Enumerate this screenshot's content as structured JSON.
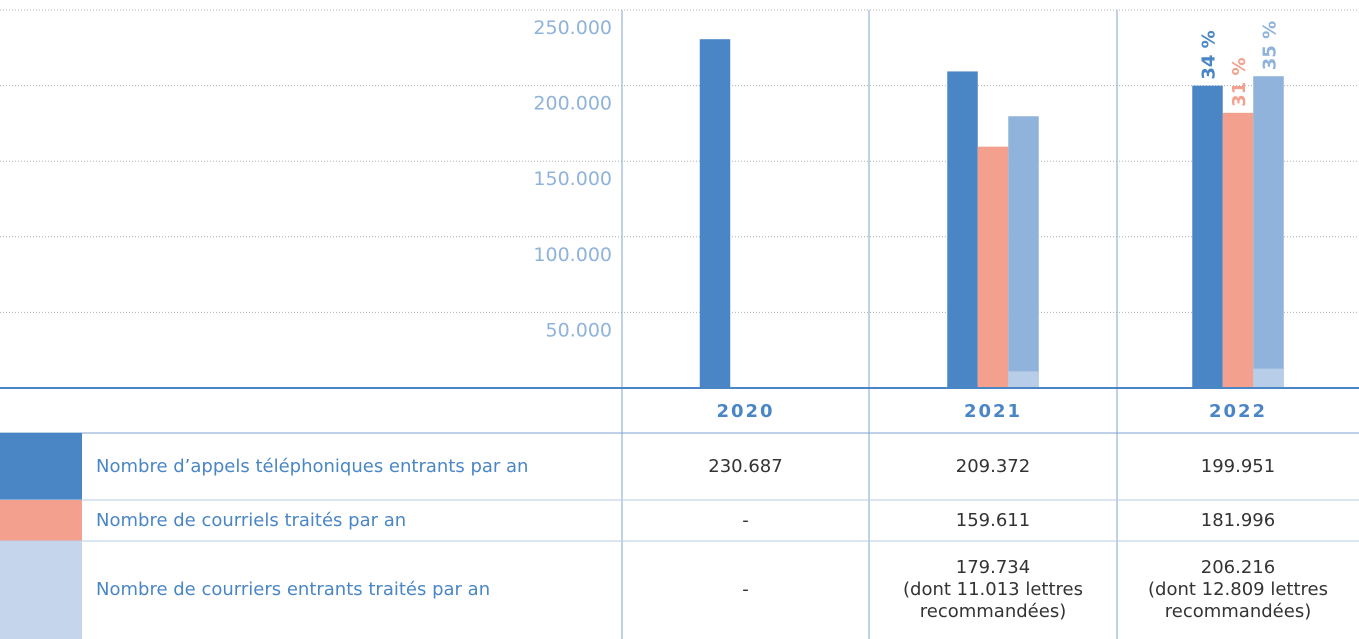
{
  "chart_data": {
    "type": "bar",
    "categories": [
      "2020",
      "2021",
      "2022"
    ],
    "series": [
      {
        "name": "Nombre d’appels téléphoniques entrants par an",
        "color": "#4a86c5",
        "values": [
          230687,
          209372,
          199951
        ],
        "value_labels": [
          "230.687",
          "209.372",
          "199.951"
        ]
      },
      {
        "name": "Nombre de courriels traités par an",
        "color": "#f4a08e",
        "values": [
          null,
          159611,
          181996
        ],
        "value_labels": [
          "-",
          "159.611",
          "181.996"
        ]
      },
      {
        "name": "Nombre de courriers entrants traités par an",
        "color": "#8fb3da",
        "swatch_color": "#c5d6ec",
        "values": [
          null,
          179734,
          206216
        ],
        "value_labels": [
          "-",
          "179.734",
          "206.216"
        ],
        "notes": [
          null,
          "(dont 11.013 lettres recommandées)",
          "(dont 12.809 lettres recommandées)"
        ]
      }
    ],
    "sub_series": {
      "color": "#b8cde8",
      "values": [
        null,
        11013,
        12809
      ]
    },
    "percent_labels": [
      "34 %",
      "31 %",
      "35 %"
    ],
    "ylim": [
      0,
      250000
    ],
    "yticks": [
      {
        "value": 50000,
        "label": "50.000"
      },
      {
        "value": 100000,
        "label": "100.000"
      },
      {
        "value": 150000,
        "label": "150.000"
      },
      {
        "value": 200000,
        "label": "200.000"
      },
      {
        "value": 250000,
        "label": "250.000"
      }
    ],
    "grid": true
  }
}
